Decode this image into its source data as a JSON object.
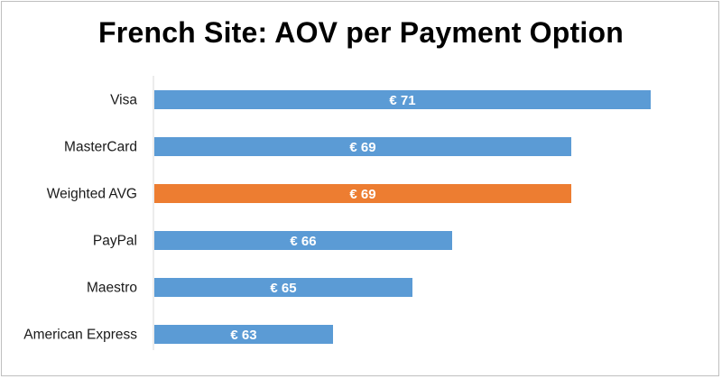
{
  "chart_data": {
    "type": "bar",
    "orientation": "horizontal",
    "title": "French Site: AOV per Payment Option",
    "categories": [
      "Visa",
      "MasterCard",
      "Weighted AVG",
      "PayPal",
      "Maestro",
      "American Express"
    ],
    "values": [
      71,
      69,
      69,
      66,
      65,
      63
    ],
    "data_labels": [
      "€ 71",
      "€ 69",
      "€ 69",
      "€ 66",
      "€ 65",
      "€ 63"
    ],
    "highlight_category": "Weighted AVG",
    "xlim": [
      58.5,
      71
    ],
    "grid": false,
    "legend": "none",
    "colors": {
      "bar": "#5b9bd5",
      "highlight": "#ed7d31",
      "axis": "#d9d9d9",
      "label_text": "#ffffff"
    }
  }
}
